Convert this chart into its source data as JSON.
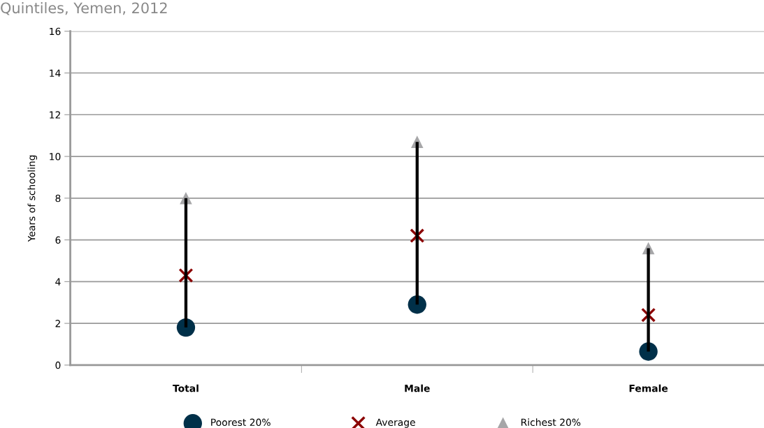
{
  "chart_data": {
    "type": "scatter",
    "title": "Quintiles, Yemen, 2012",
    "ylabel": "Years of schooling",
    "categories": [
      "Total",
      "Male",
      "Female"
    ],
    "series": [
      {
        "type": "bar",
        "color": "#000000",
        "base": [
          1.8,
          2.9,
          0.65
        ],
        "values": [
          6.2,
          7.8,
          4.95
        ]
      },
      {
        "name": "Poorest 20%",
        "color": "#003049",
        "marker": "circle",
        "values": [
          1.8,
          2.9,
          0.65
        ]
      },
      {
        "name": "Average",
        "color": "#8b0000",
        "marker": "cross",
        "values": [
          4.3,
          6.2,
          2.4
        ]
      },
      {
        "name": "Richest 20%",
        "color": "#a6a6a8",
        "marker": "triangle",
        "values": [
          8.0,
          10.7,
          5.6
        ]
      }
    ],
    "ylim": [
      0,
      16
    ],
    "yticks": [
      0,
      2,
      4,
      6,
      8,
      10,
      12,
      14,
      16
    ],
    "grid": "y",
    "legend": "bottom"
  }
}
